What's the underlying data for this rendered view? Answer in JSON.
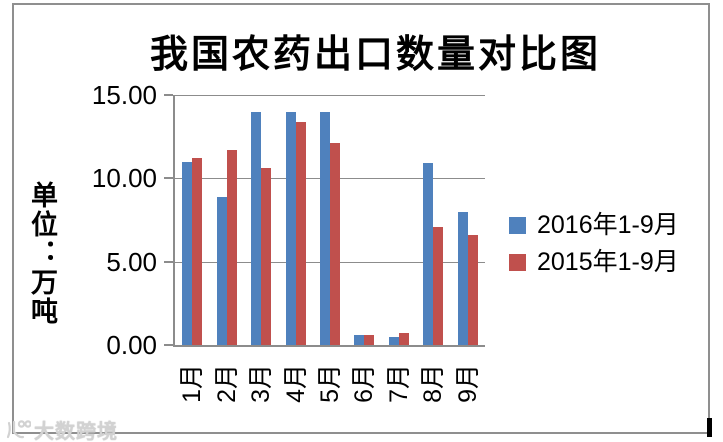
{
  "watermark": {
    "text": "大数跨境"
  },
  "chart_data": {
    "type": "bar",
    "title": "我国农药出口数量对比图",
    "ylabel": "单位：万吨",
    "xlabel": "",
    "categories": [
      "1月",
      "2月",
      "3月",
      "4月",
      "5月",
      "6月",
      "7月",
      "8月",
      "9月"
    ],
    "series": [
      {
        "name": "2016年1-9月",
        "color": "#4F81BD",
        "values": [
          11.0,
          8.9,
          14.0,
          14.0,
          14.0,
          0.6,
          0.5,
          10.9,
          8.0
        ]
      },
      {
        "name": "2015年1-9月",
        "color": "#C0504D",
        "values": [
          11.2,
          11.7,
          10.6,
          13.4,
          12.1,
          0.6,
          0.7,
          7.1,
          6.6
        ]
      }
    ],
    "yticks": [
      "15.00",
      "10.00",
      "5.00",
      "0.00"
    ],
    "ylim": [
      0,
      15
    ],
    "grid": true,
    "legend_position": "right",
    "grid_color": "#8c8c8c",
    "frame_color": "#8f8f8f",
    "watermark_color": "#d2d2d2"
  }
}
